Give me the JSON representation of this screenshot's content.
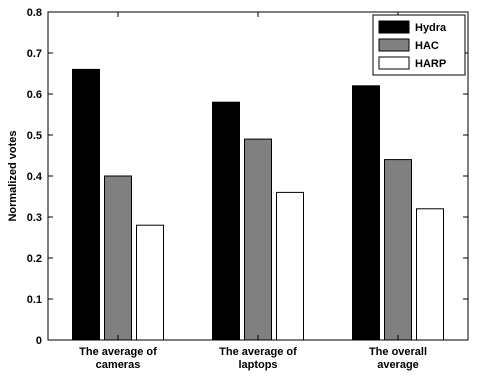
{
  "chart_data": {
    "type": "bar",
    "title": "",
    "xlabel": "",
    "ylabel": "Normalized votes",
    "ylim": [
      0,
      0.8
    ],
    "yticks": [
      "0",
      "0.1",
      "0.2",
      "0.3",
      "0.4",
      "0.5",
      "0.6",
      "0.7",
      "0.8"
    ],
    "categories": [
      [
        "The average of",
        "cameras"
      ],
      [
        "The average of",
        "laptops"
      ],
      [
        "The overall",
        "average"
      ]
    ],
    "series": [
      {
        "name": "Hydra",
        "color": "#000000",
        "values": [
          0.66,
          0.58,
          0.62
        ]
      },
      {
        "name": "HAC",
        "color": "#808080",
        "values": [
          0.4,
          0.49,
          0.44
        ]
      },
      {
        "name": "HARP",
        "color": "#ffffff",
        "values": [
          0.28,
          0.36,
          0.32
        ]
      }
    ],
    "legend": "top-right",
    "grid": false
  }
}
